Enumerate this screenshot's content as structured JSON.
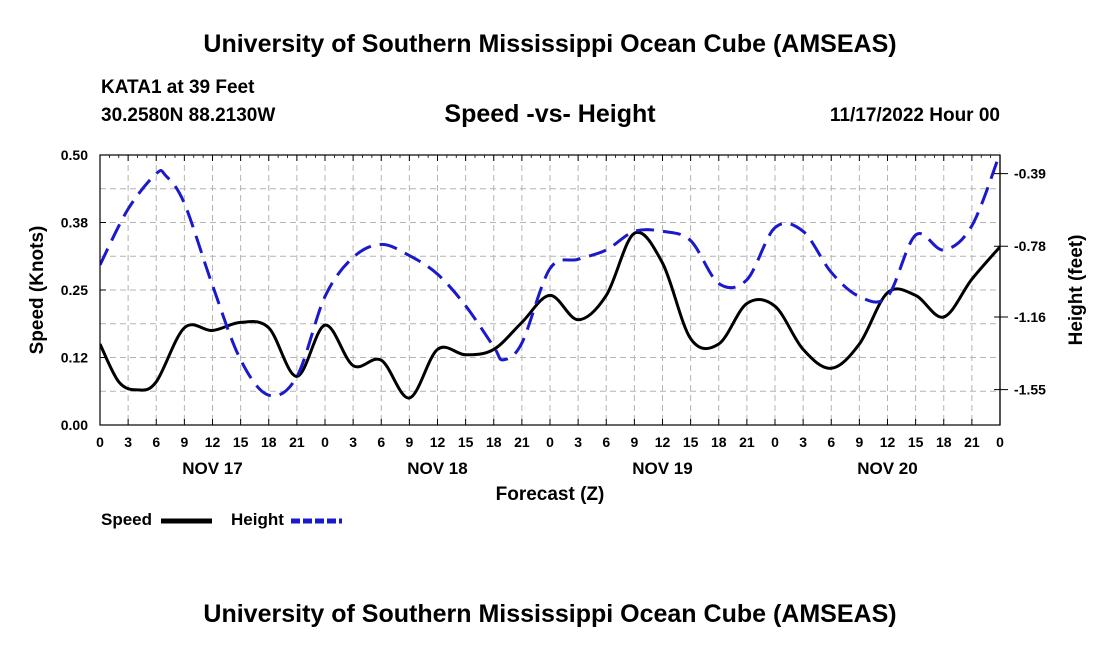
{
  "header": {
    "title": "University of Southern Mississippi Ocean Cube (AMSEAS)",
    "station": "KATA1 at 39 Feet",
    "coords": "30.2580N  88.2130W",
    "chart_title": "Speed -vs- Height",
    "datetime": "11/17/2022 Hour 00"
  },
  "footer": {
    "title": "University of Southern Mississippi Ocean Cube (AMSEAS)"
  },
  "legend": {
    "speed_label": "Speed",
    "height_label": "Height"
  },
  "colors": {
    "speed": "#000000",
    "height": "#1a1acc",
    "grid": "#b4b4b4"
  },
  "chart_data": {
    "type": "line",
    "title": "Speed -vs- Height",
    "xlabel": "Forecast (Z)",
    "ylabel": "Speed (Knots)",
    "y2label": "Height (feet)",
    "ylim": [
      0,
      0.5
    ],
    "y2lim": [
      -1.74,
      -0.29
    ],
    "yticks": [
      "0.00",
      "0.12",
      "0.25",
      "0.38",
      "0.50"
    ],
    "y2ticks": [
      "-0.39",
      "-0.78",
      "-1.16",
      "-1.55"
    ],
    "xlim": [
      0,
      96
    ],
    "x_tick_labels": [
      "0",
      "3",
      "6",
      "9",
      "12",
      "15",
      "18",
      "21",
      "0",
      "3",
      "6",
      "9",
      "12",
      "15",
      "18",
      "21",
      "0",
      "3",
      "6",
      "9",
      "12",
      "15",
      "18",
      "21",
      "0",
      "3",
      "6",
      "9",
      "12",
      "15",
      "18",
      "21",
      "0"
    ],
    "day_labels": [
      "NOV 17",
      "NOV 18",
      "NOV 19",
      "NOV 20"
    ],
    "grid": true,
    "series": [
      {
        "name": "Speed",
        "axis": "left",
        "style": "solid",
        "x": [
          0,
          2,
          4,
          6,
          9,
          12,
          15,
          18,
          21,
          24,
          27,
          30,
          33,
          36,
          39,
          42,
          45,
          48,
          51,
          54,
          57,
          60,
          63,
          66,
          69,
          72,
          75,
          78,
          81,
          84,
          87,
          90,
          93,
          96
        ],
        "values": [
          0.15,
          0.08,
          0.065,
          0.08,
          0.18,
          0.175,
          0.19,
          0.18,
          0.09,
          0.185,
          0.11,
          0.12,
          0.05,
          0.14,
          0.13,
          0.14,
          0.19,
          0.24,
          0.195,
          0.24,
          0.355,
          0.3,
          0.16,
          0.15,
          0.225,
          0.22,
          0.14,
          0.105,
          0.15,
          0.245,
          0.24,
          0.2,
          0.27,
          0.33
        ]
      },
      {
        "name": "Height",
        "axis": "right",
        "style": "dashed",
        "x": [
          0,
          3,
          6,
          7,
          9,
          12,
          15,
          18,
          21,
          24,
          27,
          30,
          33,
          36,
          39,
          42,
          43,
          45,
          48,
          51,
          54,
          57,
          60,
          63,
          66,
          69,
          72,
          75,
          78,
          81,
          84,
          87,
          90,
          93,
          96
        ],
        "values": [
          -0.88,
          -0.58,
          -0.39,
          -0.4,
          -0.55,
          -0.99,
          -1.39,
          -1.58,
          -1.48,
          -1.05,
          -0.84,
          -0.77,
          -0.83,
          -0.93,
          -1.1,
          -1.32,
          -1.39,
          -1.3,
          -0.9,
          -0.85,
          -0.8,
          -0.7,
          -0.7,
          -0.75,
          -0.98,
          -0.96,
          -0.68,
          -0.7,
          -0.92,
          -1.05,
          -1.05,
          -0.72,
          -0.8,
          -0.67,
          -0.28
        ]
      }
    ]
  }
}
